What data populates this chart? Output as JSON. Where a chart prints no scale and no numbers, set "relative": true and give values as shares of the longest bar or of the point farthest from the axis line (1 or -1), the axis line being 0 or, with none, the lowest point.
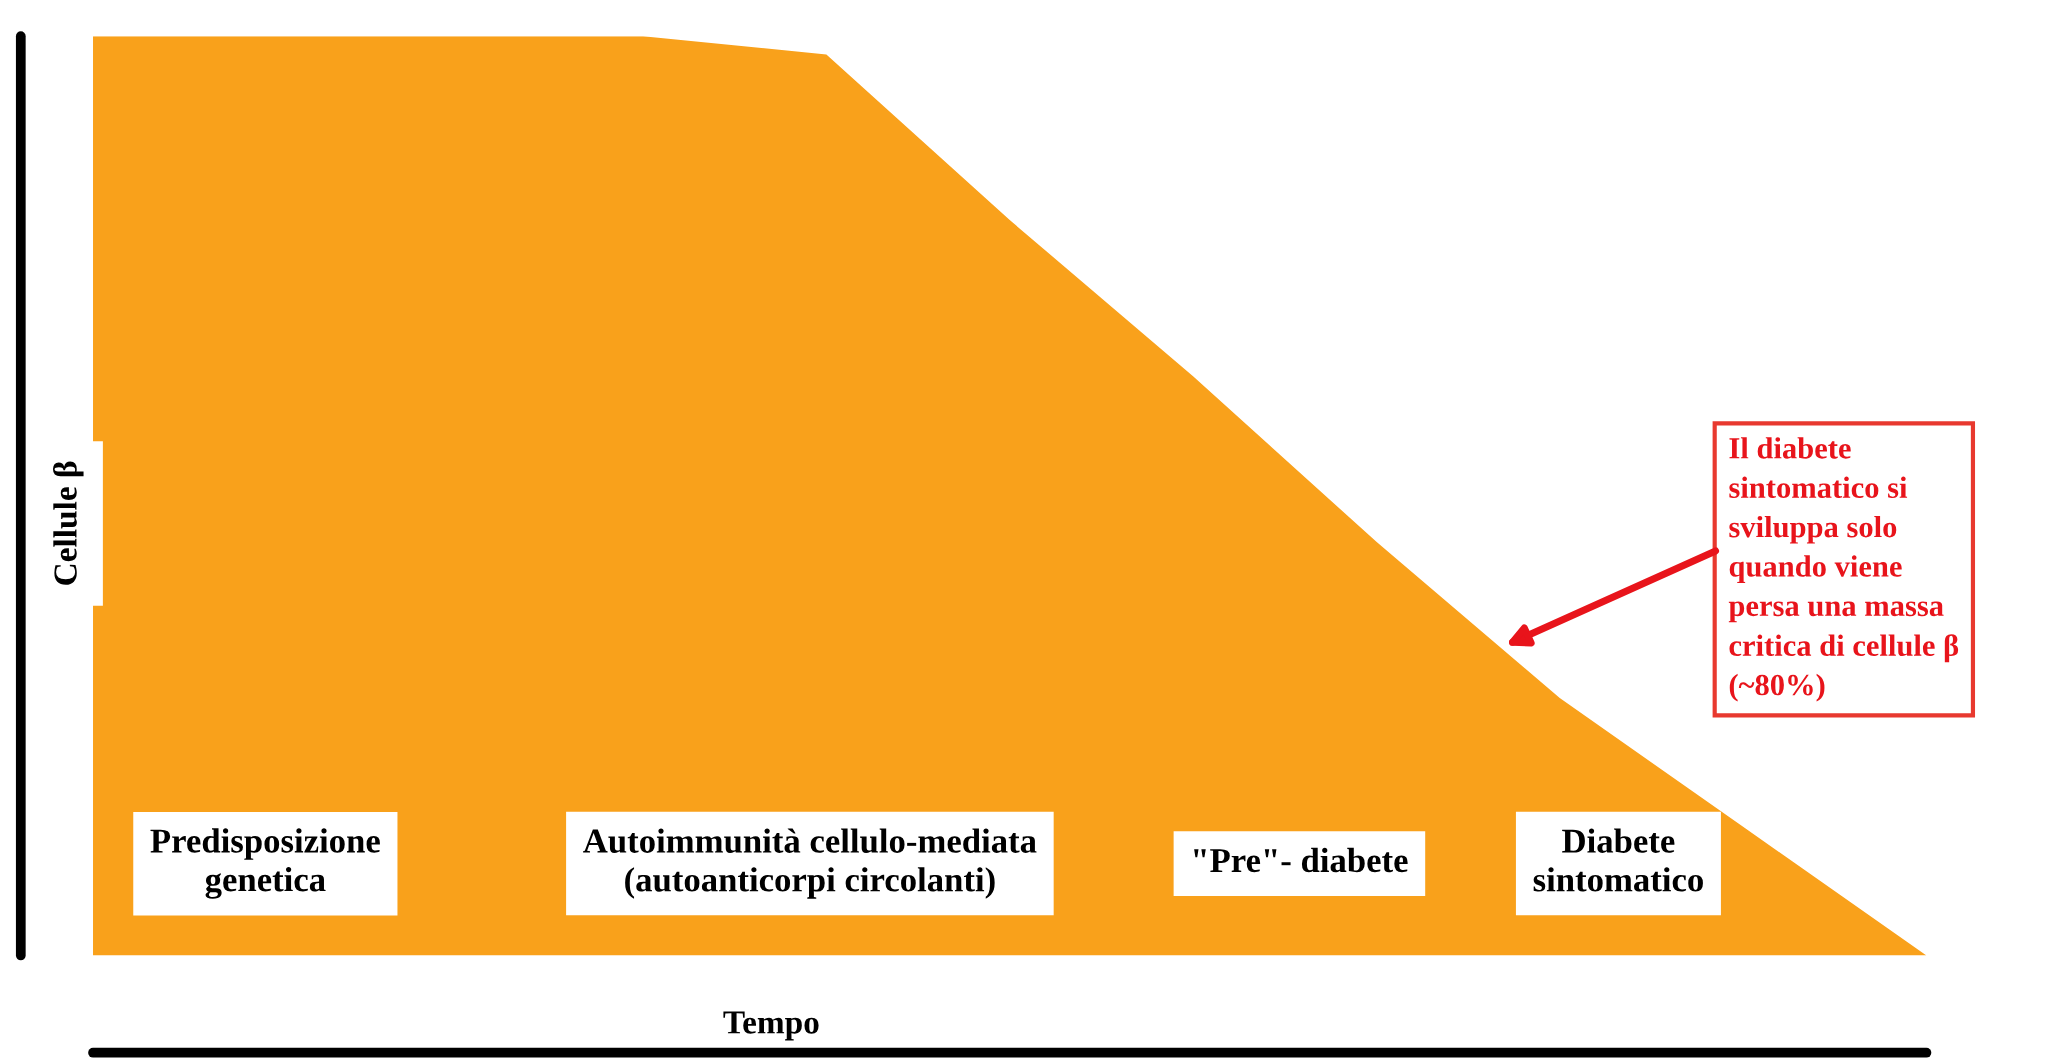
{
  "chart_data": {
    "type": "area",
    "relative": true,
    "xlabel": "Tempo",
    "ylabel": "Cellule β",
    "categories": [
      null,
      null,
      null,
      null,
      null,
      null,
      null,
      null,
      null,
      null,
      null
    ],
    "series": [
      {
        "color": "#f9a11b",
        "values": [
          1,
          1,
          1,
          1,
          0.98,
          0.8,
          0.63,
          0.45,
          0.28,
          0.14,
          0
        ]
      }
    ],
    "annotations": [
      "Predisposizione\ngenetica",
      "Autoimmunità cellulo-mediata\n(autoanticorpi circolanti)",
      "\"Pre\"- diabete",
      "Diabete\nsintomatico",
      "Il diabete\nsintomatico si\nsviluppa solo\nquando viene\npersa una massa\ncritica di cellule β\n(~80%)"
    ]
  }
}
